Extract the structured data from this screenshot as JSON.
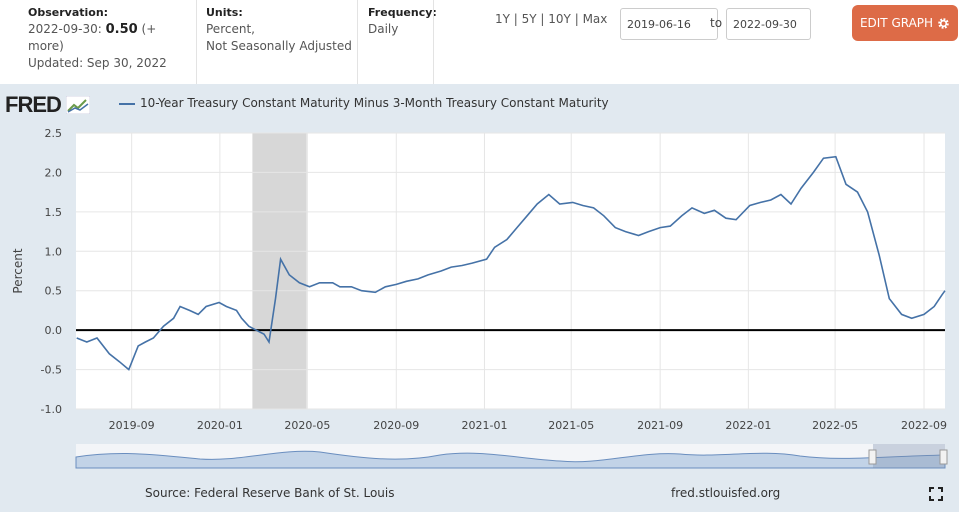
{
  "header": {
    "observation_label": "Observation:",
    "observation_date": "2022-09-30:",
    "observation_value": "0.50",
    "observation_more": "(+",
    "observation_more2": "more)",
    "updated": "Updated: Sep 30, 2022",
    "units_label": "Units:",
    "units_line1": "Percent,",
    "units_line2": "Not Seasonally Adjusted",
    "frequency_label": "Frequency:",
    "frequency_value": "Daily",
    "ranges": [
      "1Y",
      "5Y",
      "10Y",
      "Max"
    ],
    "start_date": "2019-06-16",
    "to_label": "to",
    "end_date": "2022-09-30",
    "edit_label": "EDIT GRAPH"
  },
  "logo_text": "FRED",
  "footer": {
    "source": "Source: Federal Reserve Bank of St. Louis",
    "site": "fred.stlouisfed.org"
  },
  "colors": {
    "line": "#4572a7",
    "recession": "#d7d7d7",
    "accent": "#dd6b47",
    "panel": "#e1e9f0"
  },
  "chart_data": {
    "type": "line",
    "title": "10-Year Treasury Constant Maturity Minus 3-Month Treasury Constant Maturity",
    "ylabel": "Percent",
    "xlabel": "",
    "ylim": [
      -1.0,
      2.5
    ],
    "yticks": [
      "2.5",
      "2.0",
      "1.5",
      "1.0",
      "0.5",
      "0.0",
      "-0.5",
      "-1.0"
    ],
    "xticks": [
      "2019-09",
      "2020-01",
      "2020-05",
      "2020-09",
      "2021-01",
      "2021-05",
      "2021-09",
      "2022-01",
      "2022-05",
      "2022-09"
    ],
    "x_range": [
      "2019-06-16",
      "2022-09-30"
    ],
    "recession": [
      "2020-02-15",
      "2020-04-30"
    ],
    "series": [
      {
        "name": "10-Year Treasury Constant Maturity Minus 3-Month Treasury Constant Maturity",
        "x": [
          "2019-06-17",
          "2019-07-01",
          "2019-07-15",
          "2019-08-01",
          "2019-08-15",
          "2019-08-28",
          "2019-09-10",
          "2019-09-20",
          "2019-10-01",
          "2019-10-15",
          "2019-10-29",
          "2019-11-07",
          "2019-11-20",
          "2019-12-02",
          "2019-12-13",
          "2019-12-31",
          "2020-01-10",
          "2020-01-24",
          "2020-01-31",
          "2020-02-10",
          "2020-02-20",
          "2020-03-02",
          "2020-03-09",
          "2020-03-18",
          "2020-03-25",
          "2020-04-06",
          "2020-04-20",
          "2020-05-04",
          "2020-05-18",
          "2020-06-05",
          "2020-06-15",
          "2020-07-01",
          "2020-07-15",
          "2020-08-03",
          "2020-08-17",
          "2020-09-01",
          "2020-09-15",
          "2020-10-01",
          "2020-10-15",
          "2020-11-02",
          "2020-11-16",
          "2020-12-01",
          "2020-12-15",
          "2021-01-04",
          "2021-01-15",
          "2021-02-01",
          "2021-02-15",
          "2021-03-01",
          "2021-03-15",
          "2021-03-31",
          "2021-04-15",
          "2021-05-03",
          "2021-05-17",
          "2021-06-01",
          "2021-06-15",
          "2021-07-01",
          "2021-07-15",
          "2021-08-02",
          "2021-08-16",
          "2021-09-01",
          "2021-09-15",
          "2021-10-01",
          "2021-10-15",
          "2021-11-01",
          "2021-11-15",
          "2021-12-01",
          "2021-12-15",
          "2022-01-03",
          "2022-01-18",
          "2022-02-01",
          "2022-02-15",
          "2022-03-01",
          "2022-03-15",
          "2022-04-01",
          "2022-04-15",
          "2022-05-02",
          "2022-05-16",
          "2022-06-01",
          "2022-06-15",
          "2022-07-01",
          "2022-07-15",
          "2022-08-01",
          "2022-08-15",
          "2022-09-01",
          "2022-09-15",
          "2022-09-26",
          "2022-09-30"
        ],
        "values": [
          -0.1,
          -0.15,
          -0.1,
          -0.3,
          -0.4,
          -0.5,
          -0.2,
          -0.15,
          -0.1,
          0.05,
          0.15,
          0.3,
          0.25,
          0.2,
          0.3,
          0.35,
          0.3,
          0.25,
          0.15,
          0.05,
          0.0,
          -0.05,
          -0.15,
          0.4,
          0.9,
          0.7,
          0.6,
          0.55,
          0.6,
          0.6,
          0.55,
          0.55,
          0.5,
          0.48,
          0.55,
          0.58,
          0.62,
          0.65,
          0.7,
          0.75,
          0.8,
          0.82,
          0.85,
          0.9,
          1.05,
          1.15,
          1.3,
          1.45,
          1.6,
          1.72,
          1.6,
          1.62,
          1.58,
          1.55,
          1.45,
          1.3,
          1.25,
          1.2,
          1.25,
          1.3,
          1.32,
          1.45,
          1.55,
          1.48,
          1.52,
          1.42,
          1.4,
          1.58,
          1.62,
          1.65,
          1.72,
          1.6,
          1.8,
          2.0,
          2.18,
          2.2,
          1.85,
          1.75,
          1.5,
          0.95,
          0.4,
          0.2,
          0.15,
          0.2,
          0.3,
          0.45,
          0.5
        ]
      }
    ]
  }
}
